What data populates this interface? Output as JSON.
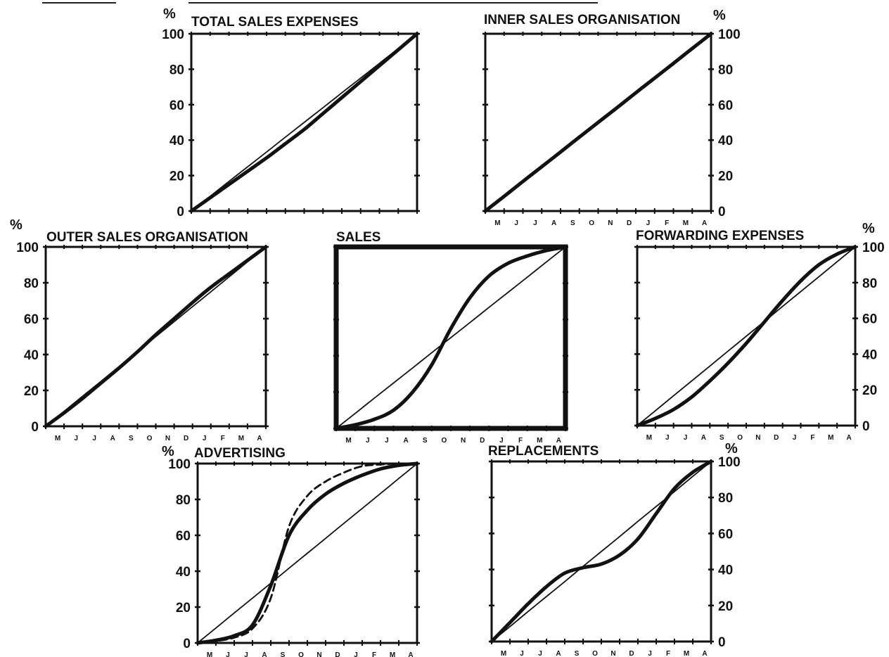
{
  "chart_data": [
    {
      "type": "line",
      "title": "TOTAL SALES EXPENSES",
      "ylabel": "%",
      "ylim": [
        0,
        100
      ],
      "yticks": [
        "0",
        "20",
        "40",
        "60",
        "80",
        "100"
      ],
      "x": [
        0,
        1,
        2,
        3,
        4,
        5,
        6,
        7,
        8,
        9,
        10,
        11,
        12
      ],
      "xticks": [
        "",
        "",
        "",
        "",
        "",
        "",
        "",
        "",
        "",
        "",
        "",
        "",
        ""
      ],
      "grid": false,
      "series": [
        {
          "values": [
            0,
            7.5,
            15,
            22.5,
            30,
            38,
            46,
            55,
            64,
            73,
            82,
            91,
            100
          ]
        },
        {
          "values": [
            0,
            8.3,
            16.7,
            25,
            33.3,
            41.7,
            50,
            58.3,
            66.7,
            75,
            83.3,
            91.7,
            100
          ],
          "style": "thin"
        }
      ]
    },
    {
      "type": "line",
      "title": "INNER SALES ORGANISATION",
      "ylabel": "%",
      "ylim": [
        0,
        100
      ],
      "yticks": [
        "0",
        "20",
        "40",
        "60",
        "80",
        "100"
      ],
      "yaxis_side": "right",
      "x": [
        0,
        1,
        2,
        3,
        4,
        5,
        6,
        7,
        8,
        9,
        10,
        11,
        12
      ],
      "xticks": [
        "",
        "M",
        "J",
        "J",
        "A",
        "S",
        "O",
        "N",
        "D",
        "J",
        "F",
        "M",
        "A"
      ],
      "grid": false,
      "series": [
        {
          "values": [
            0,
            8.3,
            16.7,
            25,
            33.3,
            41.7,
            50,
            58.3,
            66.7,
            75,
            83.3,
            91.7,
            100
          ]
        }
      ]
    },
    {
      "type": "line",
      "title": "OUTER SALES ORGANISATION",
      "ylabel": "%",
      "ylim": [
        0,
        100
      ],
      "yticks": [
        "0",
        "20",
        "40",
        "60",
        "80",
        "100"
      ],
      "x": [
        0,
        1,
        2,
        3,
        4,
        5,
        6,
        7,
        8,
        9,
        10,
        11,
        12
      ],
      "xticks": [
        "",
        "M",
        "J",
        "J",
        "A",
        "S",
        "O",
        "N",
        "D",
        "J",
        "F",
        "M",
        "A"
      ],
      "grid": false,
      "series": [
        {
          "values": [
            0,
            7.5,
            15.5,
            24,
            32.5,
            41.5,
            51,
            60,
            69,
            77.5,
            85,
            92.5,
            100
          ]
        },
        {
          "values": [
            0,
            8.3,
            16.7,
            25,
            33.3,
            41.7,
            50,
            58.3,
            66.7,
            75,
            83.3,
            91.7,
            100
          ],
          "style": "thin"
        }
      ]
    },
    {
      "type": "line",
      "title": "SALES",
      "ylim": [
        0,
        100
      ],
      "x": [
        0,
        1,
        2,
        3,
        4,
        5,
        6,
        7,
        8,
        9,
        10,
        11,
        12
      ],
      "xticks": [
        "",
        "M",
        "J",
        "J",
        "A",
        "S",
        "O",
        "N",
        "D",
        "J",
        "F",
        "M",
        "A"
      ],
      "frame": "heavy",
      "grid": false,
      "series": [
        {
          "values": [
            0,
            2,
            5,
            10,
            20,
            35,
            55,
            72,
            84,
            91,
            95,
            98,
            100
          ]
        },
        {
          "values": [
            0,
            8.3,
            16.7,
            25,
            33.3,
            41.7,
            50,
            58.3,
            66.7,
            75,
            83.3,
            91.7,
            100
          ],
          "style": "thin"
        }
      ]
    },
    {
      "type": "line",
      "title": "FORWARDING EXPENSES",
      "ylabel": "%",
      "ylim": [
        0,
        100
      ],
      "yticks": [
        "0",
        "20",
        "40",
        "60",
        "80",
        "100"
      ],
      "yaxis_side": "right",
      "x": [
        0,
        1,
        2,
        3,
        4,
        5,
        6,
        7,
        8,
        9,
        10,
        11,
        12
      ],
      "xticks": [
        "",
        "M",
        "J",
        "J",
        "A",
        "S",
        "O",
        "N",
        "D",
        "J",
        "F",
        "M",
        "A"
      ],
      "grid": false,
      "series": [
        {
          "values": [
            0,
            4,
            9,
            16,
            25,
            35,
            46,
            58,
            70,
            81,
            90,
            96,
            100
          ]
        },
        {
          "values": [
            0,
            8.3,
            16.7,
            25,
            33.3,
            41.7,
            50,
            58.3,
            66.7,
            75,
            83.3,
            91.7,
            100
          ],
          "style": "thin"
        }
      ]
    },
    {
      "type": "line",
      "title": "ADVERTISING",
      "ylabel": "%",
      "ylim": [
        0,
        100
      ],
      "yticks": [
        "0",
        "20",
        "40",
        "60",
        "80",
        "100"
      ],
      "x": [
        0,
        1,
        2,
        3,
        4,
        5,
        6,
        7,
        8,
        9,
        10,
        11,
        12
      ],
      "xticks": [
        "",
        "M",
        "J",
        "J",
        "A",
        "S",
        "O",
        "N",
        "D",
        "J",
        "F",
        "M",
        "A"
      ],
      "grid": false,
      "series": [
        {
          "values": [
            0,
            1.5,
            4,
            10,
            32,
            60,
            74,
            83,
            89,
            93.5,
            97,
            99,
            100
          ]
        },
        {
          "values": [
            0,
            1,
            3,
            8,
            25,
            65,
            82,
            90,
            95,
            98.5,
            99.5,
            100,
            100
          ],
          "style": "dashed"
        },
        {
          "values": [
            0,
            8.3,
            16.7,
            25,
            33.3,
            41.7,
            50,
            58.3,
            66.7,
            75,
            83.3,
            91.7,
            100
          ],
          "style": "thin"
        }
      ]
    },
    {
      "type": "line",
      "title": "REPLACEMENTS",
      "ylabel": "%",
      "ylim": [
        0,
        100
      ],
      "yticks": [
        "0",
        "20",
        "40",
        "60",
        "80",
        "100"
      ],
      "yaxis_side": "right",
      "x": [
        0,
        1,
        2,
        3,
        4,
        5,
        6,
        7,
        8,
        9,
        10,
        11,
        12
      ],
      "xticks": [
        "",
        "M",
        "J",
        "J",
        "A",
        "S",
        "O",
        "N",
        "D",
        "J",
        "F",
        "M",
        "A"
      ],
      "grid": false,
      "series": [
        {
          "values": [
            0,
            10.5,
            21,
            30.5,
            38,
            41,
            43,
            48,
            57,
            71,
            85,
            94,
            100
          ]
        },
        {
          "values": [
            0,
            8.3,
            16.7,
            25,
            33.3,
            41.7,
            50,
            58.3,
            66.7,
            75,
            83.3,
            91.7,
            100
          ],
          "style": "thin"
        }
      ]
    }
  ]
}
